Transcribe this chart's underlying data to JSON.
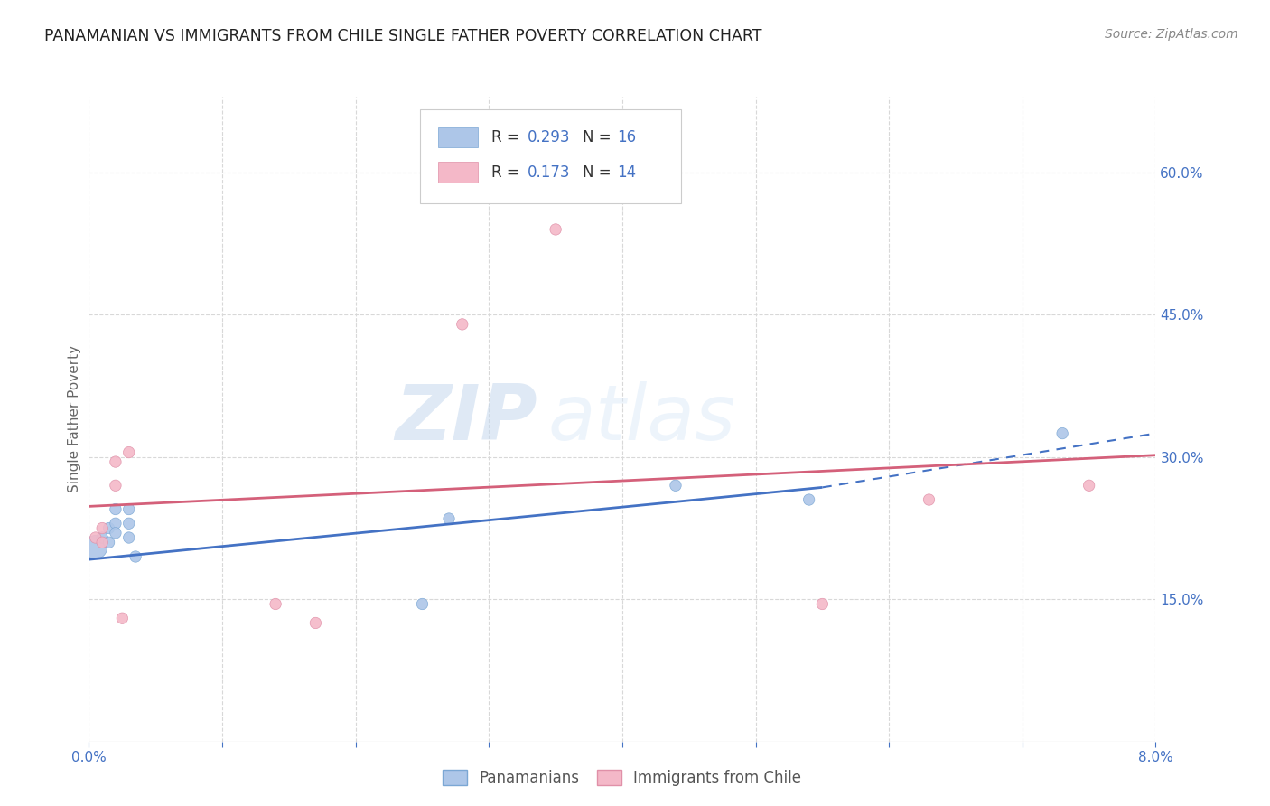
{
  "title": "PANAMANIAN VS IMMIGRANTS FROM CHILE SINGLE FATHER POVERTY CORRELATION CHART",
  "source": "Source: ZipAtlas.com",
  "ylabel": "Single Father Poverty",
  "xlim": [
    0.0,
    0.08
  ],
  "ylim": [
    0.0,
    0.68
  ],
  "xticks": [
    0.0,
    0.01,
    0.02,
    0.03,
    0.04,
    0.05,
    0.06,
    0.07,
    0.08
  ],
  "xticklabels": [
    "0.0%",
    "",
    "",
    "",
    "",
    "",
    "",
    "",
    "8.0%"
  ],
  "yticks_right": [
    0.15,
    0.3,
    0.45,
    0.6
  ],
  "ytick_labels_right": [
    "15.0%",
    "30.0%",
    "45.0%",
    "60.0%"
  ],
  "watermark_zip": "ZIP",
  "watermark_atlas": "atlas",
  "blue_scatter": {
    "x": [
      0.0005,
      0.001,
      0.0015,
      0.0015,
      0.002,
      0.002,
      0.002,
      0.003,
      0.003,
      0.003,
      0.0035,
      0.025,
      0.027,
      0.044,
      0.054,
      0.073
    ],
    "y": [
      0.205,
      0.215,
      0.225,
      0.21,
      0.245,
      0.23,
      0.22,
      0.215,
      0.23,
      0.245,
      0.195,
      0.145,
      0.235,
      0.27,
      0.255,
      0.325
    ],
    "sizes": [
      350,
      80,
      80,
      80,
      80,
      80,
      80,
      80,
      80,
      80,
      80,
      80,
      80,
      80,
      80,
      80
    ]
  },
  "pink_scatter": {
    "x": [
      0.0005,
      0.001,
      0.001,
      0.002,
      0.002,
      0.0025,
      0.003,
      0.014,
      0.017,
      0.028,
      0.035,
      0.055,
      0.063,
      0.075
    ],
    "y": [
      0.215,
      0.225,
      0.21,
      0.27,
      0.295,
      0.13,
      0.305,
      0.145,
      0.125,
      0.44,
      0.54,
      0.145,
      0.255,
      0.27
    ],
    "sizes": [
      80,
      80,
      80,
      80,
      80,
      80,
      80,
      80,
      80,
      80,
      80,
      80,
      80,
      80
    ]
  },
  "blue_line_solid": {
    "x": [
      0.0,
      0.055
    ],
    "y": [
      0.192,
      0.268
    ]
  },
  "blue_line_dashed": {
    "x": [
      0.055,
      0.08
    ],
    "y": [
      0.268,
      0.325
    ]
  },
  "pink_line": {
    "x": [
      0.0,
      0.08
    ],
    "y": [
      0.248,
      0.302
    ]
  },
  "title_color": "#222222",
  "source_color": "#888888",
  "axis_color": "#4472c4",
  "ylabel_color": "#666666",
  "blue_color": "#adc6e8",
  "blue_edge_color": "#7ba7d4",
  "pink_color": "#f4b8c8",
  "pink_edge_color": "#e090a8",
  "blue_line_color": "#4472c4",
  "pink_line_color": "#d4607a",
  "grid_color": "#d8d8d8",
  "watermark_color": "#c5d8ee",
  "legend_r_color": "#4472c4",
  "legend_labels_bottom": [
    "Panamanians",
    "Immigrants from Chile"
  ]
}
